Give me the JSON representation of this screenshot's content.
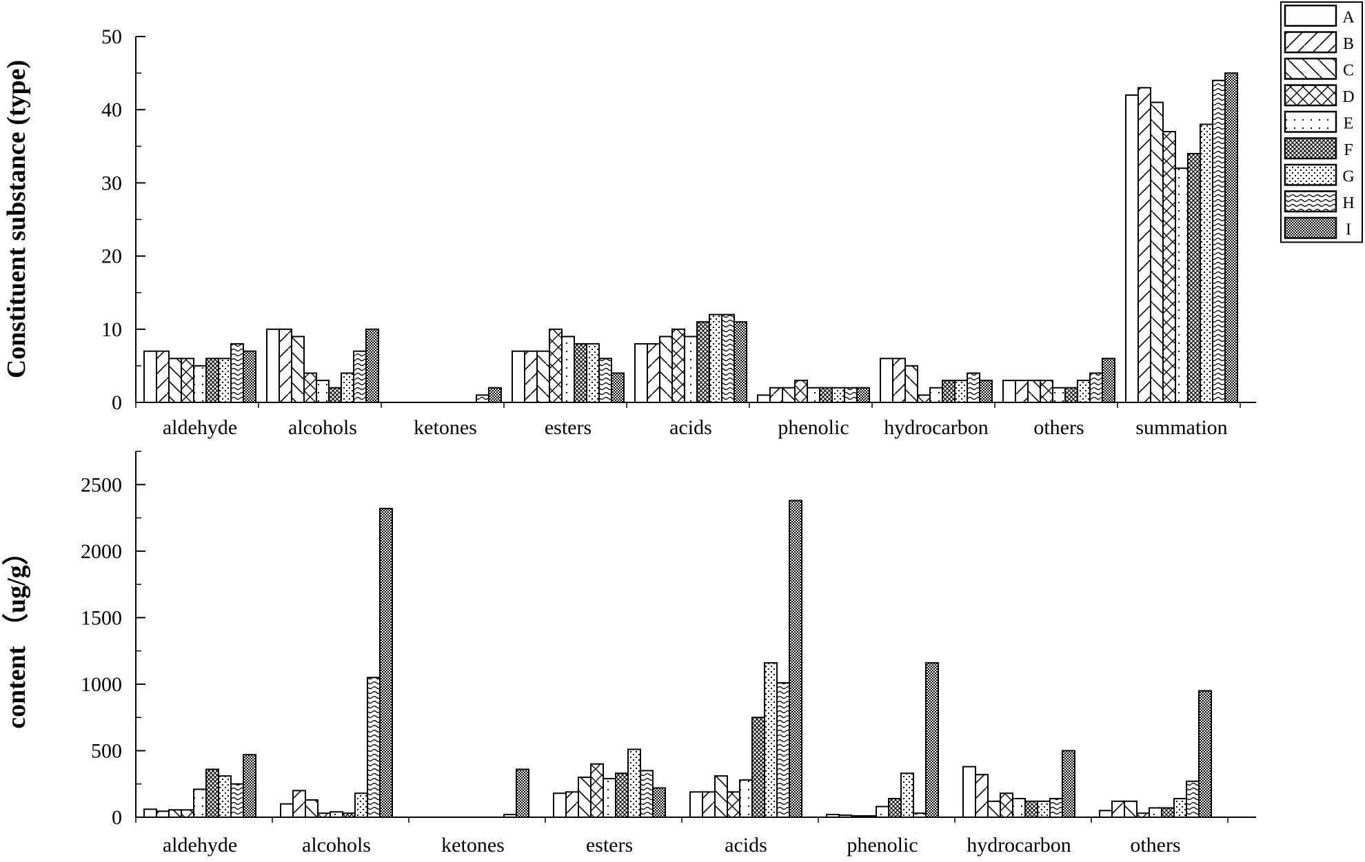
{
  "legend": {
    "position": "top-right",
    "entries": [
      {
        "label": "A",
        "pattern": "blank"
      },
      {
        "label": "B",
        "pattern": "diag-right"
      },
      {
        "label": "C",
        "pattern": "diag-left"
      },
      {
        "label": "D",
        "pattern": "cross"
      },
      {
        "label": "E",
        "pattern": "sparse-dots"
      },
      {
        "label": "F",
        "pattern": "dense-cross"
      },
      {
        "label": "G",
        "pattern": "dots"
      },
      {
        "label": "H",
        "pattern": "waves"
      },
      {
        "label": "I",
        "pattern": "dense-dots"
      }
    ]
  },
  "chart_data": [
    {
      "type": "bar",
      "ylabel": "Constituent substance (type)",
      "xlabel": "",
      "ylim": [
        0,
        50
      ],
      "yticks": [
        0,
        10,
        20,
        30,
        40,
        50
      ],
      "categories": [
        "aldehyde",
        "alcohols",
        "ketones",
        "esters",
        "acids",
        "phenolic",
        "hydrocarbon",
        "others",
        "summation"
      ],
      "series": [
        {
          "name": "A",
          "values": [
            7,
            10,
            0,
            7,
            8,
            1,
            6,
            3,
            42
          ]
        },
        {
          "name": "B",
          "values": [
            7,
            10,
            0,
            7,
            8,
            2,
            6,
            3,
            43
          ]
        },
        {
          "name": "C",
          "values": [
            6,
            9,
            0,
            7,
            9,
            2,
            5,
            3,
            41
          ]
        },
        {
          "name": "D",
          "values": [
            6,
            4,
            0,
            10,
            10,
            3,
            1,
            3,
            37
          ]
        },
        {
          "name": "E",
          "values": [
            5,
            3,
            0,
            9,
            9,
            2,
            2,
            2,
            32
          ]
        },
        {
          "name": "F",
          "values": [
            6,
            2,
            0,
            8,
            11,
            2,
            3,
            2,
            34
          ]
        },
        {
          "name": "G",
          "values": [
            6,
            4,
            0,
            8,
            12,
            2,
            3,
            3,
            38
          ]
        },
        {
          "name": "H",
          "values": [
            8,
            7,
            1,
            6,
            12,
            2,
            4,
            4,
            44
          ]
        },
        {
          "name": "I",
          "values": [
            7,
            10,
            2,
            4,
            11,
            2,
            3,
            6,
            45
          ]
        }
      ],
      "grid": false
    },
    {
      "type": "bar",
      "ylabel": "content （ug/g）",
      "xlabel": "",
      "ylim": [
        0,
        2750
      ],
      "yticks": [
        0,
        500,
        1000,
        1500,
        2000,
        2500
      ],
      "categories": [
        "aldehyde",
        "alcohols",
        "ketones",
        "esters",
        "acids",
        "phenolic",
        "hydrocarbon",
        "others"
      ],
      "series": [
        {
          "name": "A",
          "values": [
            60,
            100,
            0,
            180,
            190,
            20,
            380,
            50
          ]
        },
        {
          "name": "B",
          "values": [
            45,
            200,
            0,
            190,
            190,
            15,
            320,
            120
          ]
        },
        {
          "name": "C",
          "values": [
            55,
            130,
            0,
            300,
            310,
            10,
            120,
            120
          ]
        },
        {
          "name": "D",
          "values": [
            55,
            30,
            0,
            400,
            190,
            10,
            180,
            30
          ]
        },
        {
          "name": "E",
          "values": [
            210,
            40,
            0,
            290,
            280,
            80,
            140,
            70
          ]
        },
        {
          "name": "F",
          "values": [
            360,
            30,
            0,
            330,
            750,
            140,
            120,
            70
          ]
        },
        {
          "name": "G",
          "values": [
            310,
            180,
            0,
            510,
            1160,
            330,
            120,
            140
          ]
        },
        {
          "name": "H",
          "values": [
            250,
            1050,
            20,
            350,
            1010,
            30,
            140,
            270
          ]
        },
        {
          "name": "I",
          "values": [
            470,
            2320,
            360,
            220,
            2380,
            1160,
            500,
            950
          ]
        }
      ],
      "grid": false
    }
  ]
}
